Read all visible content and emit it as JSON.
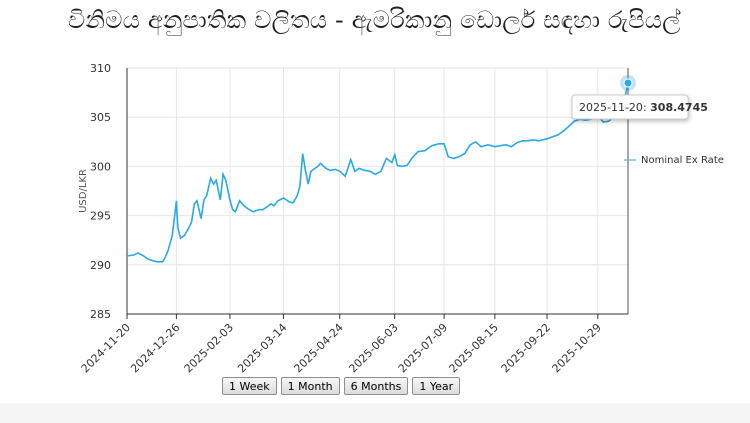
{
  "page": {
    "title": "විනිමය අනුපාතික වලිතය - ඇමරිකානු ඩොලර් සඳහා රුපියල්"
  },
  "buttons": [
    {
      "label": "1 Week"
    },
    {
      "label": "1 Month"
    },
    {
      "label": "6 Months"
    },
    {
      "label": "1 Year"
    }
  ],
  "tooltip": {
    "date": "2025-11-20",
    "value": "308.4745"
  },
  "colors": {
    "series": "#29a9e6",
    "grid": "#e6e6e6",
    "axis": "#333333",
    "crosshair": "#555555"
  },
  "chart_data": {
    "type": "line",
    "title": "විනිමය අනුපාතික වලිතය - ඇමරිකානු ඩොලර් සඳහා රුපියල්",
    "xlabel": "",
    "ylabel": "USD/LKR",
    "ylim": [
      285,
      310
    ],
    "yticks": [
      285,
      290,
      295,
      300,
      305,
      310
    ],
    "xlim": [
      "2024-11-20",
      "2025-11-20"
    ],
    "xticks": [
      "2024-11-20",
      "2024-12-26",
      "2025-02-03",
      "2025-03-14",
      "2025-04-24",
      "2025-06-03",
      "2025-07-09",
      "2025-08-15",
      "2025-09-22",
      "2025-10-29"
    ],
    "legend": "right",
    "grid": true,
    "series": [
      {
        "name": "Nominal Ex Rate",
        "points": [
          [
            "2024-11-20",
            290.9
          ],
          [
            "2024-11-25",
            291.0
          ],
          [
            "2024-11-28",
            291.2
          ],
          [
            "2024-12-02",
            290.9
          ],
          [
            "2024-12-05",
            290.6
          ],
          [
            "2024-12-09",
            290.4
          ],
          [
            "2024-12-12",
            290.3
          ],
          [
            "2024-12-16",
            290.3
          ],
          [
            "2024-12-18",
            290.8
          ],
          [
            "2024-12-20",
            291.5
          ],
          [
            "2024-12-23",
            293.0
          ],
          [
            "2024-12-26",
            296.5
          ],
          [
            "2024-12-27",
            293.8
          ],
          [
            "2024-12-29",
            292.7
          ],
          [
            "2025-01-01",
            293.0
          ],
          [
            "2025-01-03",
            293.5
          ],
          [
            "2025-01-06",
            294.3
          ],
          [
            "2025-01-08",
            296.2
          ],
          [
            "2025-01-10",
            296.5
          ],
          [
            "2025-01-13",
            294.7
          ],
          [
            "2025-01-15",
            296.6
          ],
          [
            "2025-01-17",
            297.0
          ],
          [
            "2025-01-20",
            298.8
          ],
          [
            "2025-01-22",
            298.2
          ],
          [
            "2025-01-24",
            298.6
          ],
          [
            "2025-01-27",
            296.6
          ],
          [
            "2025-01-29",
            299.2
          ],
          [
            "2025-01-31",
            298.6
          ],
          [
            "2025-02-03",
            296.6
          ],
          [
            "2025-02-05",
            295.6
          ],
          [
            "2025-02-07",
            295.4
          ],
          [
            "2025-02-10",
            296.5
          ],
          [
            "2025-02-12",
            296.2
          ],
          [
            "2025-02-14",
            295.9
          ],
          [
            "2025-02-17",
            295.6
          ],
          [
            "2025-02-20",
            295.4
          ],
          [
            "2025-02-24",
            295.6
          ],
          [
            "2025-02-27",
            295.6
          ],
          [
            "2025-03-03",
            296.0
          ],
          [
            "2025-03-05",
            296.2
          ],
          [
            "2025-03-07",
            296.0
          ],
          [
            "2025-03-10",
            296.5
          ],
          [
            "2025-03-14",
            296.8
          ],
          [
            "2025-03-18",
            296.4
          ],
          [
            "2025-03-21",
            296.3
          ],
          [
            "2025-03-24",
            297.0
          ],
          [
            "2025-03-26",
            298.0
          ],
          [
            "2025-03-28",
            301.3
          ],
          [
            "2025-03-30",
            299.6
          ],
          [
            "2025-04-01",
            298.2
          ],
          [
            "2025-04-03",
            299.5
          ],
          [
            "2025-04-08",
            300.0
          ],
          [
            "2025-04-10",
            300.3
          ],
          [
            "2025-04-14",
            299.8
          ],
          [
            "2025-04-17",
            299.6
          ],
          [
            "2025-04-21",
            299.7
          ],
          [
            "2025-04-24",
            299.5
          ],
          [
            "2025-04-28",
            299.0
          ],
          [
            "2025-05-02",
            300.7
          ],
          [
            "2025-05-05",
            299.5
          ],
          [
            "2025-05-08",
            299.8
          ],
          [
            "2025-05-12",
            299.6
          ],
          [
            "2025-05-16",
            299.5
          ],
          [
            "2025-05-20",
            299.2
          ],
          [
            "2025-05-24",
            299.5
          ],
          [
            "2025-05-28",
            300.8
          ],
          [
            "2025-06-01",
            300.4
          ],
          [
            "2025-06-03",
            301.2
          ],
          [
            "2025-06-05",
            300.1
          ],
          [
            "2025-06-08",
            300.0
          ],
          [
            "2025-06-12",
            300.1
          ],
          [
            "2025-06-16",
            300.9
          ],
          [
            "2025-06-20",
            301.5
          ],
          [
            "2025-06-25",
            301.6
          ],
          [
            "2025-06-30",
            302.1
          ],
          [
            "2025-07-05",
            302.3
          ],
          [
            "2025-07-09",
            302.3
          ],
          [
            "2025-07-12",
            301.0
          ],
          [
            "2025-07-16",
            300.8
          ],
          [
            "2025-07-20",
            301.0
          ],
          [
            "2025-07-24",
            301.3
          ],
          [
            "2025-07-28",
            302.2
          ],
          [
            "2025-08-01",
            302.5
          ],
          [
            "2025-08-05",
            302.0
          ],
          [
            "2025-08-10",
            302.2
          ],
          [
            "2025-08-15",
            302.0
          ],
          [
            "2025-08-19",
            302.1
          ],
          [
            "2025-08-23",
            302.2
          ],
          [
            "2025-08-27",
            302.0
          ],
          [
            "2025-08-31",
            302.4
          ],
          [
            "2025-09-04",
            302.6
          ],
          [
            "2025-09-08",
            302.6
          ],
          [
            "2025-09-12",
            302.7
          ],
          [
            "2025-09-16",
            302.6
          ],
          [
            "2025-09-22",
            302.8
          ],
          [
            "2025-09-26",
            303.0
          ],
          [
            "2025-09-30",
            303.2
          ],
          [
            "2025-10-04",
            303.6
          ],
          [
            "2025-10-08",
            304.1
          ],
          [
            "2025-10-12",
            304.6
          ],
          [
            "2025-10-16",
            304.8
          ],
          [
            "2025-10-20",
            304.7
          ],
          [
            "2025-10-24",
            304.8
          ],
          [
            "2025-10-29",
            305.2
          ],
          [
            "2025-11-02",
            304.5
          ],
          [
            "2025-11-06",
            304.6
          ],
          [
            "2025-11-10",
            305.1
          ],
          [
            "2025-11-13",
            305.2
          ],
          [
            "2025-11-16",
            305.6
          ],
          [
            "2025-11-18",
            307.2
          ],
          [
            "2025-11-20",
            308.4745
          ]
        ]
      }
    ]
  }
}
